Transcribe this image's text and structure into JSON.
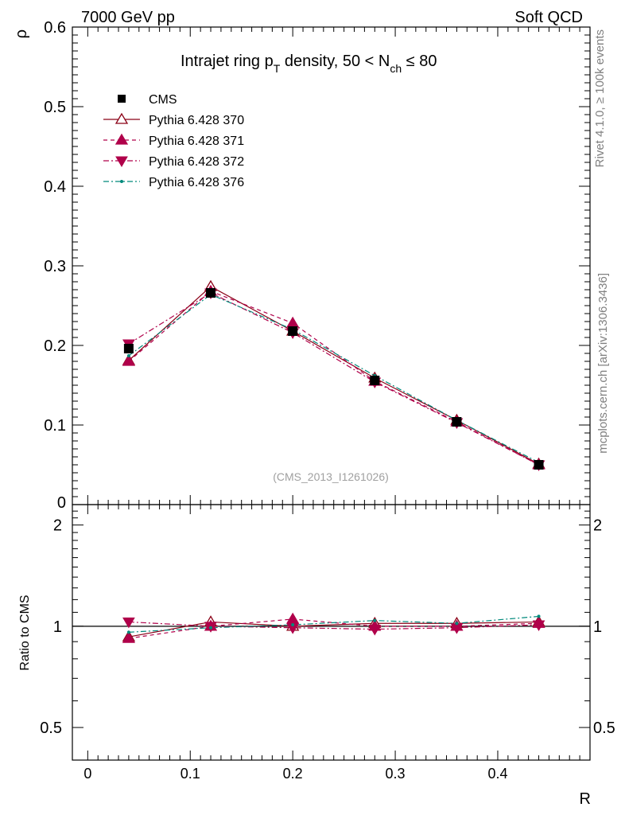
{
  "header": {
    "left": "7000 GeV pp",
    "right": "Soft QCD"
  },
  "side_text": {
    "rivet": "Rivet 4.1.0, ≥ 100k events",
    "mcplots": "mcplots.cern.ch [arXiv:1306.3436]"
  },
  "chart_data": {
    "type": "line",
    "title": "Intrajet ring p_T density, 50 < N_ch ≤ 80",
    "title_parts": {
      "a": "Intrajet ring p",
      "sub1": "T",
      "b": " density, 50 < N",
      "sub2": "ch",
      "c": " ≤ 80"
    },
    "watermark": "(CMS_2013_I1261026)",
    "xlabel": "R",
    "ylabel": "ρ",
    "ratio_ylabel": "Ratio to CMS",
    "xlim": [
      -0.015,
      0.49
    ],
    "ylim": [
      0,
      0.6
    ],
    "ratio_ylim": [
      0.4,
      2.3
    ],
    "ratio_log": true,
    "x_ticks": [
      0,
      0.1,
      0.2,
      0.3,
      0.4
    ],
    "x_tick_labels": [
      "0",
      "0.1",
      "0.2",
      "0.3",
      "0.4"
    ],
    "y_ticks": [
      0,
      0.1,
      0.2,
      0.3,
      0.4,
      0.5,
      0.6
    ],
    "y_tick_labels": [
      "0",
      "0.1",
      "0.2",
      "0.3",
      "0.4",
      "0.5",
      "0.6"
    ],
    "ratio_ticks": [
      0.5,
      1,
      2
    ],
    "ratio_tick_labels": [
      "0.5",
      "1",
      "2"
    ],
    "x": [
      0.04,
      0.12,
      0.2,
      0.28,
      0.36,
      0.44
    ],
    "series": [
      {
        "name": "CMS",
        "marker": "square",
        "color": "#000000",
        "line": "none",
        "values": [
          0.196,
          0.266,
          0.218,
          0.156,
          0.104,
          0.05
        ],
        "ratio": [
          1,
          1,
          1,
          1,
          1,
          1
        ]
      },
      {
        "name": "Pythia 6.428 370",
        "marker": "triangle-up-open",
        "color": "#8b0016",
        "line": "solid",
        "values": [
          0.181,
          0.274,
          0.218,
          0.159,
          0.106,
          0.051
        ],
        "ratio": [
          0.93,
          1.03,
          1.0,
          1.02,
          1.02,
          1.03
        ]
      },
      {
        "name": "Pythia 6.428 371",
        "marker": "triangle-up",
        "color": "#b0004a",
        "line": "dashed",
        "values": [
          0.18,
          0.268,
          0.228,
          0.155,
          0.104,
          0.05
        ],
        "ratio": [
          0.92,
          1.0,
          1.05,
          1.0,
          1.0,
          1.02
        ]
      },
      {
        "name": "Pythia 6.428 372",
        "marker": "triangle-down",
        "color": "#b0004a",
        "line": "dashdot",
        "values": [
          0.202,
          0.266,
          0.216,
          0.154,
          0.103,
          0.05
        ],
        "ratio": [
          1.03,
          1.0,
          0.99,
          0.98,
          0.99,
          1.01
        ]
      },
      {
        "name": "Pythia 6.428 376",
        "marker": "dot",
        "color": "#00897b",
        "line": "dashdot",
        "values": [
          0.187,
          0.264,
          0.22,
          0.162,
          0.106,
          0.053
        ],
        "ratio": [
          0.96,
          0.99,
          1.01,
          1.04,
          1.02,
          1.07
        ]
      }
    ],
    "legend_position": "top-left"
  }
}
